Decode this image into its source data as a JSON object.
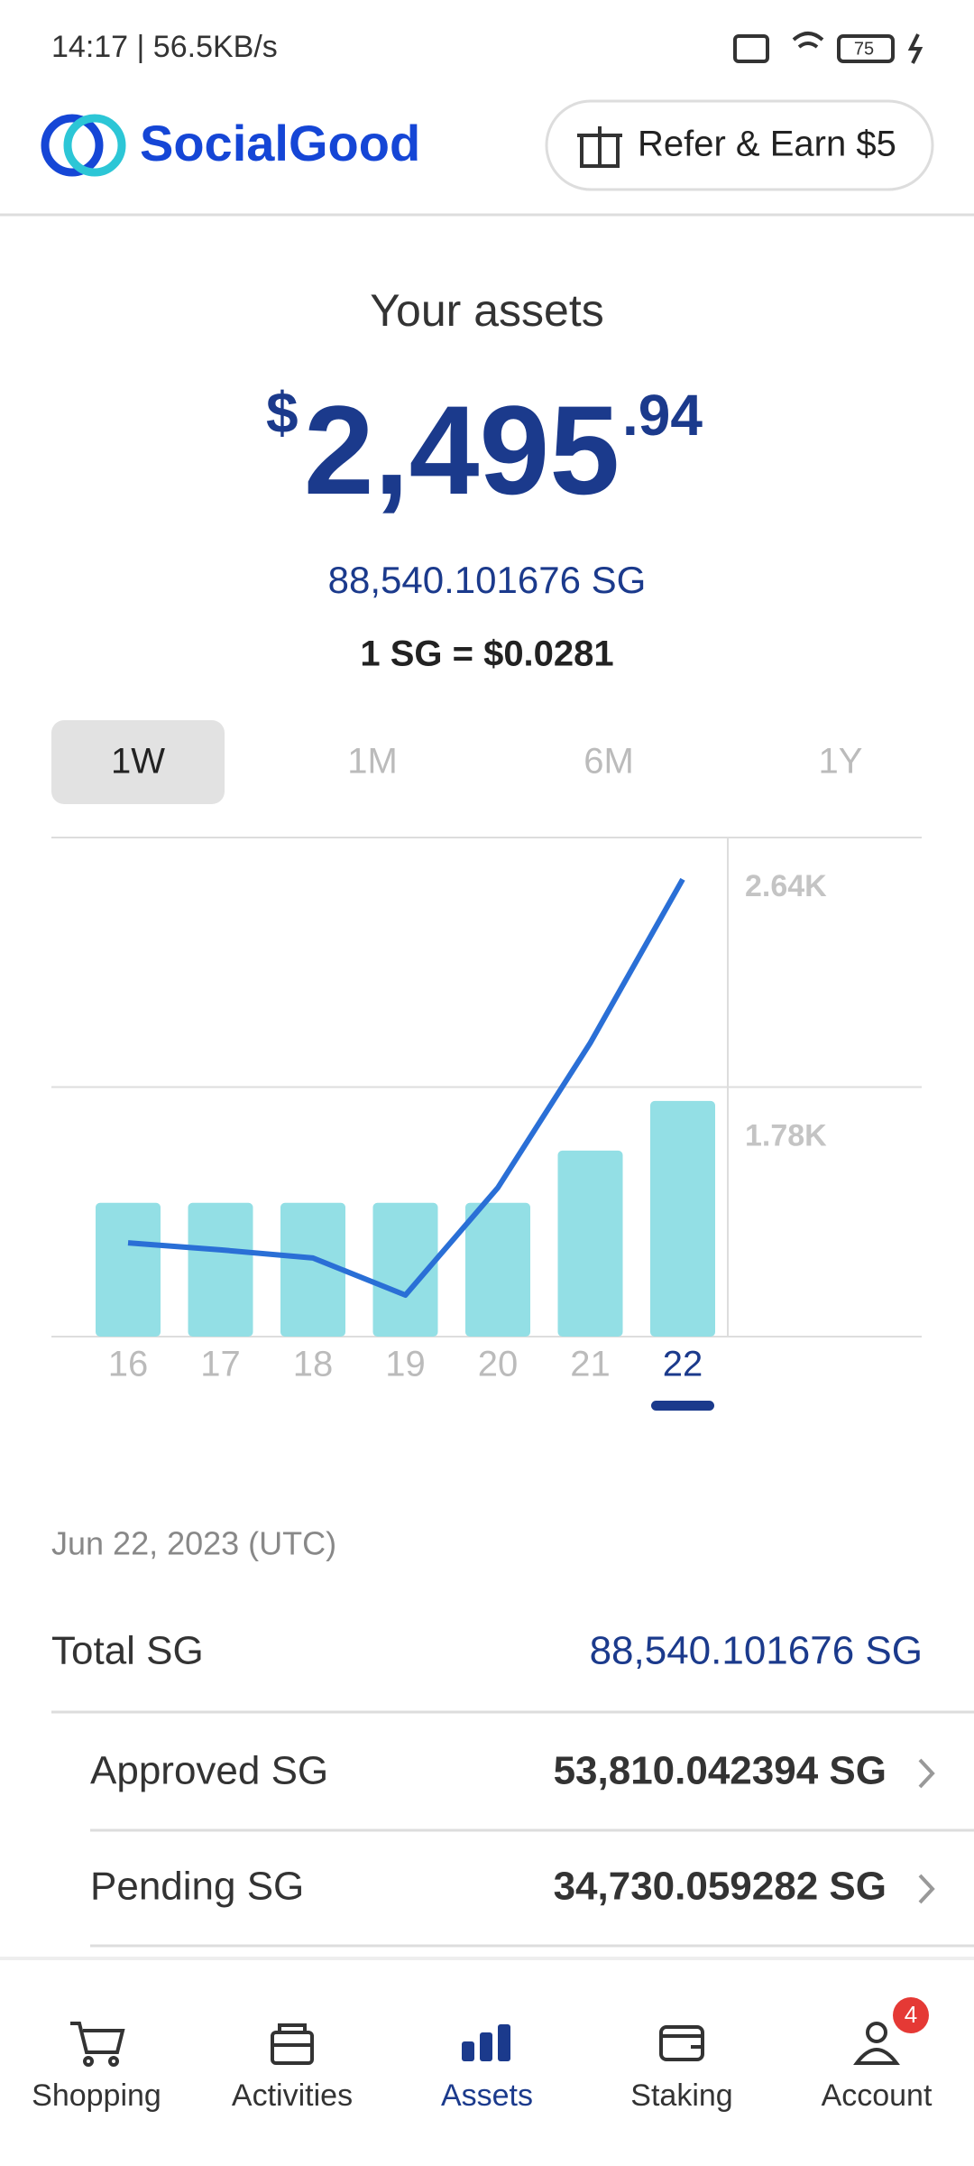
{
  "status_bar": {
    "time": "14:17 | 56.5KB/s",
    "battery": "75"
  },
  "header": {
    "brand": "SocialGood",
    "button": "Refer & Earn $5"
  },
  "assets": {
    "title": "Your assets",
    "currency": "$",
    "amount": "2,495",
    "decimals": ".94",
    "sg": "88,540.101676 SG",
    "rate": "1 SG = $0.0281"
  },
  "tabs": [
    "1W",
    "1M",
    "6M",
    "1Y"
  ],
  "chart_data": {
    "type": "bar",
    "categories": [
      "16",
      "17",
      "18",
      "19",
      "20",
      "21",
      "22"
    ],
    "series": [
      {
        "type": "bar",
        "color": "#93dfe5",
        "values": [
          1381,
          1381,
          1381,
          1381,
          1381,
          1561,
          1732
        ]
      },
      {
        "type": "line",
        "color": "#2a6fd6",
        "values": [
          1243,
          1219,
          1191,
          1063,
          1433,
          1932,
          2496
        ]
      }
    ],
    "ylim": [
      920,
      2640
    ],
    "yticks": [
      {
        "value": 1780,
        "label": "1.78K"
      },
      {
        "value": 2640,
        "label": "2.64K"
      }
    ],
    "grid": true,
    "selected": 6
  },
  "details": {
    "date": "Jun 22, 2023 (UTC)",
    "rows": [
      [
        "Total SG",
        "88,540.101676 SG"
      ],
      [
        "Approved SG",
        "53,810.042394 SG"
      ],
      [
        "Pending SG",
        "34,730.059282 SG"
      ]
    ]
  },
  "nav": {
    "items": [
      "Shopping",
      "Activities",
      "Assets",
      "Staking",
      "Account"
    ],
    "badge": 4
  }
}
